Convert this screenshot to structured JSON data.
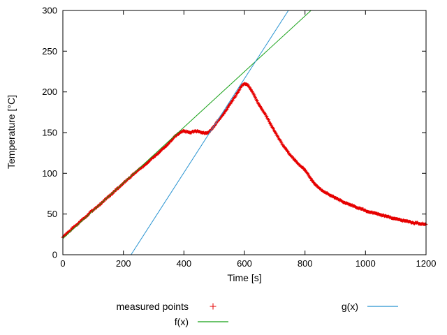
{
  "chart_data": {
    "type": "scatter",
    "title": "",
    "xlabel": "Time [s]",
    "ylabel": "Temperature [°C]",
    "xlim": [
      0,
      1200
    ],
    "ylim": [
      0,
      300
    ],
    "xticks": [
      0,
      200,
      400,
      600,
      800,
      1000,
      1200
    ],
    "yticks": [
      0,
      50,
      100,
      150,
      200,
      250,
      300
    ],
    "grid": false,
    "legend_position": "below",
    "series": [
      {
        "name": "measured points",
        "type": "points",
        "marker": "+",
        "color": "#e60000",
        "points": [
          [
            0,
            22
          ],
          [
            10,
            25
          ],
          [
            20,
            28
          ],
          [
            30,
            32
          ],
          [
            40,
            35
          ],
          [
            50,
            38
          ],
          [
            60,
            42
          ],
          [
            70,
            45
          ],
          [
            80,
            48
          ],
          [
            90,
            52
          ],
          [
            100,
            55
          ],
          [
            110,
            58
          ],
          [
            120,
            61
          ],
          [
            130,
            64
          ],
          [
            140,
            68
          ],
          [
            150,
            71
          ],
          [
            160,
            74
          ],
          [
            170,
            78
          ],
          [
            180,
            81
          ],
          [
            190,
            84
          ],
          [
            200,
            88
          ],
          [
            210,
            91
          ],
          [
            220,
            94
          ],
          [
            230,
            98
          ],
          [
            240,
            101
          ],
          [
            250,
            104
          ],
          [
            260,
            107
          ],
          [
            270,
            110
          ],
          [
            280,
            113
          ],
          [
            290,
            117
          ],
          [
            300,
            120
          ],
          [
            310,
            123
          ],
          [
            320,
            126
          ],
          [
            330,
            130
          ],
          [
            340,
            133
          ],
          [
            350,
            137
          ],
          [
            360,
            141
          ],
          [
            370,
            145
          ],
          [
            380,
            148
          ],
          [
            390,
            151
          ],
          [
            400,
            152
          ],
          [
            410,
            151
          ],
          [
            420,
            150
          ],
          [
            430,
            151
          ],
          [
            440,
            152
          ],
          [
            450,
            151
          ],
          [
            460,
            150
          ],
          [
            470,
            149
          ],
          [
            480,
            150
          ],
          [
            490,
            153
          ],
          [
            500,
            158
          ],
          [
            510,
            163
          ],
          [
            520,
            168
          ],
          [
            530,
            173
          ],
          [
            540,
            178
          ],
          [
            550,
            184
          ],
          [
            560,
            189
          ],
          [
            570,
            195
          ],
          [
            580,
            201
          ],
          [
            590,
            207
          ],
          [
            600,
            210
          ],
          [
            610,
            209
          ],
          [
            620,
            204
          ],
          [
            630,
            197
          ],
          [
            640,
            190
          ],
          [
            650,
            183
          ],
          [
            660,
            177
          ],
          [
            670,
            172
          ],
          [
            680,
            165
          ],
          [
            690,
            158
          ],
          [
            700,
            151
          ],
          [
            710,
            145
          ],
          [
            720,
            139
          ],
          [
            730,
            133
          ],
          [
            740,
            128
          ],
          [
            750,
            123
          ],
          [
            760,
            119
          ],
          [
            770,
            115
          ],
          [
            780,
            111
          ],
          [
            790,
            108
          ],
          [
            800,
            104
          ],
          [
            810,
            99
          ],
          [
            820,
            93
          ],
          [
            830,
            88
          ],
          [
            840,
            84
          ],
          [
            850,
            81
          ],
          [
            860,
            78
          ],
          [
            870,
            76
          ],
          [
            880,
            74
          ],
          [
            890,
            72
          ],
          [
            900,
            70
          ],
          [
            910,
            68
          ],
          [
            920,
            66
          ],
          [
            930,
            64
          ],
          [
            940,
            63
          ],
          [
            950,
            61
          ],
          [
            960,
            60
          ],
          [
            970,
            58
          ],
          [
            980,
            57
          ],
          [
            990,
            56
          ],
          [
            1000,
            54
          ],
          [
            1010,
            53
          ],
          [
            1020,
            52
          ],
          [
            1030,
            51
          ],
          [
            1040,
            50
          ],
          [
            1050,
            49
          ],
          [
            1060,
            48
          ],
          [
            1070,
            47
          ],
          [
            1080,
            46
          ],
          [
            1090,
            45
          ],
          [
            1100,
            44
          ],
          [
            1110,
            43
          ],
          [
            1120,
            42
          ],
          [
            1130,
            42
          ],
          [
            1140,
            41
          ],
          [
            1150,
            40
          ],
          [
            1160,
            39
          ],
          [
            1170,
            39
          ],
          [
            1180,
            38
          ],
          [
            1190,
            38
          ],
          [
            1200,
            37
          ]
        ]
      },
      {
        "name": "f(x)",
        "type": "line",
        "color": "#15a015",
        "slope": 0.3415,
        "intercept": 20
      },
      {
        "name": "g(x)",
        "type": "line",
        "color": "#2893d1",
        "slope": 0.577,
        "intercept": -130
      }
    ]
  }
}
